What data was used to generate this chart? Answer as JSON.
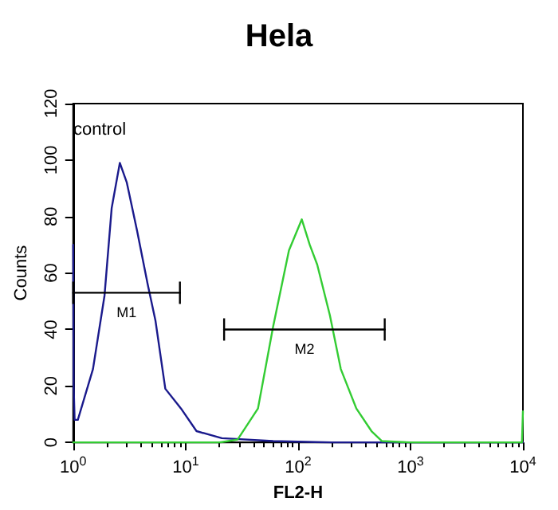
{
  "chart_data": {
    "type": "line",
    "title": "Hela",
    "xlabel": "FL2-H",
    "ylabel": "Counts",
    "annotations": [
      "control"
    ],
    "log": "x",
    "grid": false,
    "legend": false,
    "xlim": [
      1,
      10000
    ],
    "xticks": [
      {
        "value": 1,
        "label": "10$^{0}$"
      },
      {
        "value": 10,
        "label": "10$^{1}$"
      },
      {
        "value": 100,
        "label": "10$^{2}$"
      },
      {
        "value": 1000,
        "label": "10$^{3}$"
      },
      {
        "value": 10000,
        "label": "10$^{4}$"
      }
    ],
    "ylim": [
      0,
      120
    ],
    "yticks": [
      0,
      20,
      40,
      60,
      80,
      100,
      120
    ],
    "series": [
      {
        "color": "#1a1a8c",
        "marker": "none",
        "x": [
          1,
          1.01,
          1.03,
          1.1,
          1.5,
          1.9,
          2.2,
          2.6,
          3.0,
          3.7,
          4.6,
          5.4,
          6.6,
          9.1,
          12.5,
          21,
          60,
          200,
          1000,
          10000
        ],
        "values": [
          70,
          20,
          8,
          8,
          26,
          52,
          83,
          99,
          92,
          75,
          56,
          43,
          19,
          12,
          4,
          1.5,
          0.5,
          0,
          0,
          0
        ]
      },
      {
        "color": "#33cc33",
        "marker": "none",
        "x": [
          1,
          20,
          29,
          44,
          60,
          83,
          108,
          127,
          148,
          192,
          240,
          330,
          450,
          555,
          1000,
          9800,
          10000
        ],
        "values": [
          0,
          0,
          1,
          12,
          41,
          68,
          79,
          70,
          63,
          45,
          26,
          12,
          4,
          0.5,
          0,
          0,
          11
        ]
      },
      {
        "name": "M1",
        "color": "#000000",
        "x": [
          1,
          8.9
        ],
        "values": [
          53,
          53
        ]
      },
      {
        "name": "M2",
        "color": "#000000",
        "x": [
          22,
          590
        ],
        "values": [
          40,
          40
        ]
      }
    ]
  }
}
